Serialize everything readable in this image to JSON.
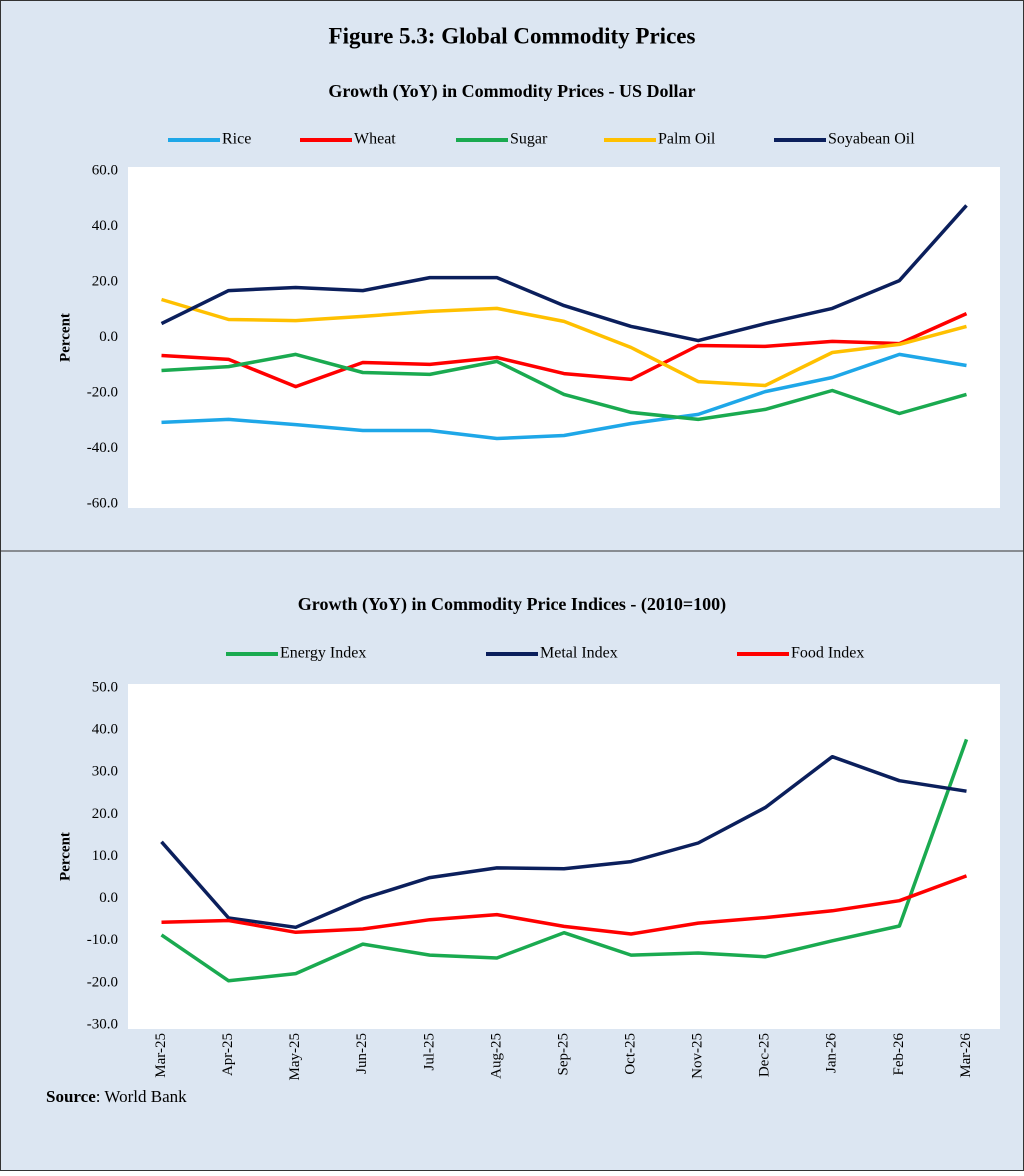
{
  "title": "Figure 5.3: Global Commodity Prices",
  "source": {
    "label": "Source",
    "text": ": World Bank"
  },
  "chart_data": [
    {
      "type": "line",
      "title": "Growth (YoY) in Commodity Prices - US Dollar",
      "y_label": "Percent",
      "ylim": [
        -60,
        60
      ],
      "yticks": [
        {
          "value": -60,
          "label": "-60.0"
        },
        {
          "value": -40,
          "label": "-40.0"
        },
        {
          "value": -20,
          "label": "-20.0"
        },
        {
          "value": 0,
          "label": "0.0"
        },
        {
          "value": 20,
          "label": "20.0"
        },
        {
          "value": 40,
          "label": "40.0"
        },
        {
          "value": 60,
          "label": "60.0"
        }
      ],
      "series": [
        {
          "name": "Rice",
          "color": "#1ea7e8",
          "values": [
            -30.6,
            -29.5,
            -31.4,
            -33.5,
            -33.5,
            -36.4,
            -35.3,
            -31.0,
            -27.7,
            -19.5,
            -14.4,
            -6.1,
            -10.1
          ]
        },
        {
          "name": "Wheat",
          "color": "#ff0000",
          "values": [
            -6.5,
            -7.9,
            -17.7,
            -9.0,
            -9.7,
            -7.2,
            -13.0,
            -15.1,
            -2.9,
            -3.2,
            -1.4,
            -2.2,
            8.6
          ]
        },
        {
          "name": "Sugar",
          "color": "#1aaa50",
          "values": [
            -11.9,
            -10.5,
            -6.1,
            -12.6,
            -13.3,
            -8.6,
            -20.5,
            -27.0,
            -29.5,
            -25.9,
            -19.1,
            -27.4,
            -20.5
          ]
        },
        {
          "name": "Palm Oil",
          "color": "#ffc000",
          "values": [
            13.7,
            6.5,
            6.1,
            7.6,
            9.4,
            10.5,
            5.8,
            -3.6,
            -15.9,
            -17.3,
            -5.4,
            -2.5,
            4.0
          ]
        },
        {
          "name": "Soyabean Oil",
          "color": "#0b1f5c",
          "values": [
            5.0,
            16.9,
            18.0,
            16.9,
            21.6,
            21.6,
            11.5,
            4.0,
            -1.1,
            5.0,
            10.5,
            20.5,
            47.6
          ]
        }
      ]
    },
    {
      "type": "line",
      "title": "Growth (YoY) in Commodity Price Indices -  (2010=100)",
      "y_label": "Percent",
      "categories": [
        "Mar-25",
        "Apr-25",
        "May-25",
        "Jun-25",
        "Jul-25",
        "Aug-25",
        "Sep-25",
        "Oct-25",
        "Nov-25",
        "Dec-25",
        "Jan-26",
        "Feb-26",
        "Mar-26"
      ],
      "ylim": [
        -30,
        50
      ],
      "yticks": [
        {
          "value": -30,
          "label": "-30.0"
        },
        {
          "value": -20,
          "label": "-20.0"
        },
        {
          "value": -10,
          "label": "-10.0"
        },
        {
          "value": 0,
          "label": "0.0"
        },
        {
          "value": 10,
          "label": "10.0"
        },
        {
          "value": 20,
          "label": "20.0"
        },
        {
          "value": 30,
          "label": "30.0"
        },
        {
          "value": 40,
          "label": "40.0"
        },
        {
          "value": 50,
          "label": "50.0"
        }
      ],
      "series": [
        {
          "name": "Energy Index",
          "color": "#1aaa50",
          "values": [
            -8.6,
            -19.5,
            -17.8,
            -10.8,
            -13.4,
            -14.1,
            -8.1,
            -13.4,
            -12.9,
            -13.8,
            -10.0,
            -6.5,
            37.8
          ]
        },
        {
          "name": "Metal Index",
          "color": "#0b1f5c",
          "values": [
            13.5,
            -4.6,
            -6.8,
            0.0,
            5.0,
            7.3,
            7.1,
            8.8,
            13.2,
            21.6,
            33.7,
            28.0,
            25.5
          ]
        },
        {
          "name": "Food Index",
          "color": "#ff0000",
          "values": [
            -5.6,
            -5.2,
            -8.0,
            -7.2,
            -5.0,
            -3.8,
            -6.6,
            -8.4,
            -5.8,
            -4.5,
            -2.9,
            -0.5,
            5.4
          ]
        }
      ]
    }
  ]
}
